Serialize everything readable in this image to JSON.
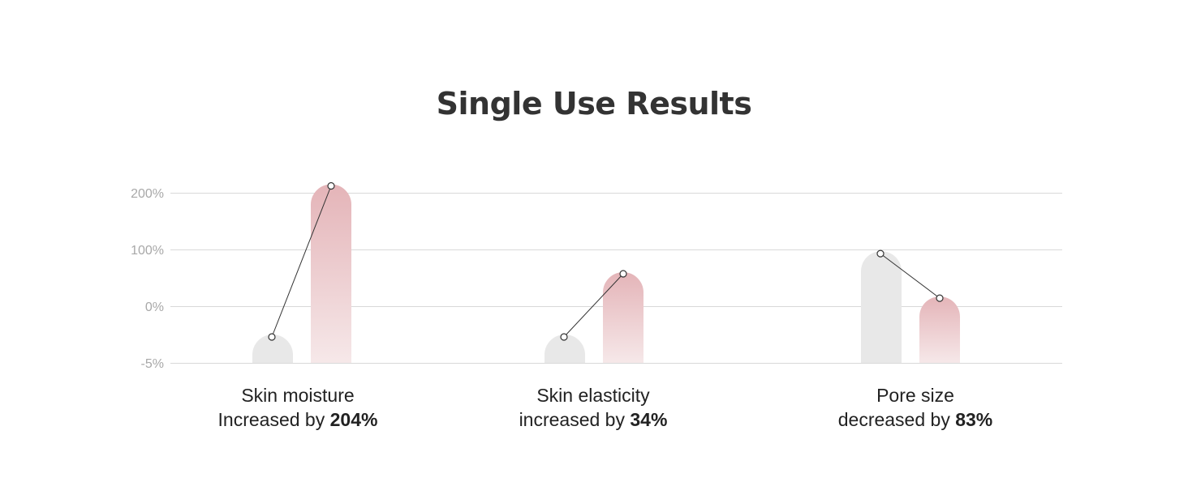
{
  "title": "Single Use Results",
  "colors": {
    "before_bar": "#e8e8e8",
    "after_bar_top": "#e4b4b8",
    "after_bar_bottom": "#f6e8e9",
    "grid": "#d9d9d9",
    "tick_text": "#a8a8a8",
    "line": "#333333"
  },
  "chart_data": {
    "type": "bar",
    "y_ticks": [
      "200%",
      "100%",
      "0%",
      "-5%"
    ],
    "groups": [
      {
        "name": "Skin moisture",
        "before": -10,
        "after": 215,
        "caption_line1": "Skin moisture",
        "caption_prefix": "Increased by ",
        "caption_value": "204%"
      },
      {
        "name": "Skin elasticity",
        "before": -10,
        "after": 60,
        "caption_line1": "Skin elasticity",
        "caption_prefix": "increased by ",
        "caption_value": "34%"
      },
      {
        "name": "Pore size",
        "before": 97,
        "after": 17,
        "caption_line1": "Pore size",
        "caption_prefix": "decreased by ",
        "caption_value": "83%"
      }
    ]
  }
}
